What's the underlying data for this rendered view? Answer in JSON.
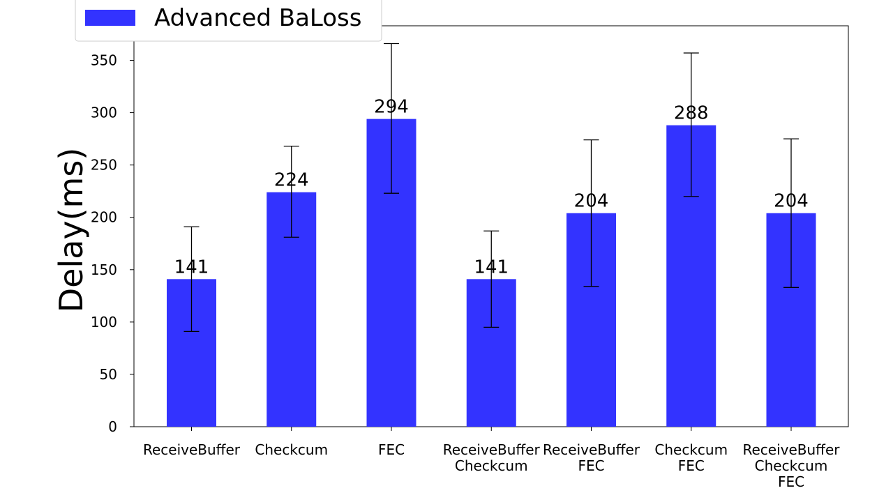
{
  "chart_data": {
    "type": "bar",
    "title": "",
    "xlabel": "",
    "ylabel": "Delay(ms)",
    "ylim": [
      0,
      383
    ],
    "yticks": [
      0,
      50,
      100,
      150,
      200,
      250,
      300,
      350
    ],
    "grid": false,
    "legend_position": "top-left",
    "categories": [
      [
        "ReceiveBuffer"
      ],
      [
        "Checkcum"
      ],
      [
        "FEC"
      ],
      [
        "ReceiveBuffer",
        "Checkcum"
      ],
      [
        "ReceiveBuffer",
        "FEC"
      ],
      [
        "Checkcum",
        "FEC"
      ],
      [
        "ReceiveBuffer",
        "Checkcum",
        "FEC"
      ]
    ],
    "series": [
      {
        "name": "Advanced BaLoss",
        "color": "#3333ff",
        "values": [
          141,
          224,
          294,
          141,
          204,
          288,
          204
        ],
        "error_low": [
          91,
          181,
          223,
          95,
          134,
          220,
          133
        ],
        "error_high": [
          191,
          268,
          366,
          187,
          274,
          357,
          275
        ],
        "data_labels": [
          "141",
          "224",
          "294",
          "141",
          "204",
          "288",
          "204"
        ]
      }
    ]
  }
}
